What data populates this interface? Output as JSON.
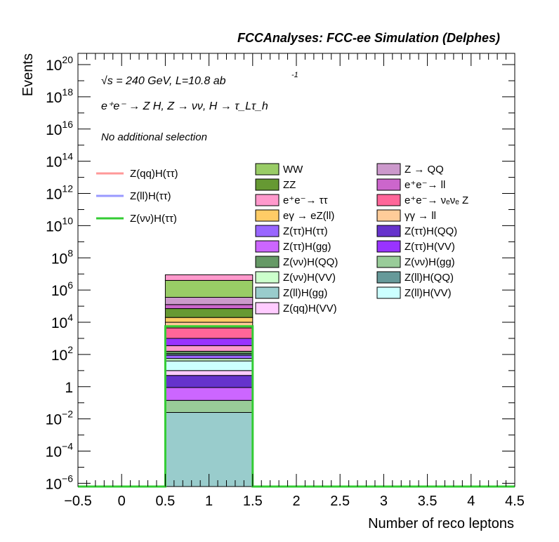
{
  "chart_data": {
    "type": "bar",
    "title": "FCCAnalyses: FCC-ee Simulation (Delphes)",
    "xlabel": "Number of reco leptons",
    "ylabel": "Events",
    "xlim": [
      -0.5,
      4.5
    ],
    "ylim_log10": [
      -6.2,
      20.7
    ],
    "log_y": true,
    "x_ticks": [
      "−0.5",
      "0",
      "0.5",
      "1",
      "1.5",
      "2",
      "2.5",
      "3",
      "3.5",
      "4",
      "4.5"
    ],
    "y_ticks": [
      {
        "base": "10",
        "exp": "20"
      },
      {
        "base": "10",
        "exp": "18"
      },
      {
        "base": "10",
        "exp": "16"
      },
      {
        "base": "10",
        "exp": "14"
      },
      {
        "base": "10",
        "exp": "12"
      },
      {
        "base": "10",
        "exp": "10"
      },
      {
        "base": "10",
        "exp": "8"
      },
      {
        "base": "10",
        "exp": "6"
      },
      {
        "base": "10",
        "exp": "4"
      },
      {
        "base": "10",
        "exp": "2"
      },
      {
        "base": "1",
        "exp": ""
      },
      {
        "base": "10",
        "exp": "−2"
      },
      {
        "base": "10",
        "exp": "−4"
      },
      {
        "base": "10",
        "exp": "−6"
      }
    ],
    "annotations": {
      "energy": "√s = 240 GeV, L=10.8 ab",
      "energy_exp": "-1",
      "process": "e⁺e⁻ → Z H, Z → νν, H → τ_Lτ_h",
      "selection": "No additional selection"
    },
    "bin": [
      0.5,
      1.5
    ],
    "stack": [
      {
        "name": "Z(ll)H(gg)",
        "color": "#99cccc",
        "log10_top": -1.6
      },
      {
        "name": "Z(νν)H(gg)",
        "color": "#99cc99",
        "log10_top": -0.85
      },
      {
        "name": "Z(ττ)H(gg)",
        "color": "#cc66ff",
        "log10_top": -0.05
      },
      {
        "name": "Z(ττ)H(QQ)",
        "color": "#6633cc",
        "log10_top": 0.7
      },
      {
        "name": "Z(qq)H(VV)",
        "color": "#ffccff",
        "log10_top": 1.0
      },
      {
        "name": "Z(ll)H(VV)",
        "color": "#ccffff",
        "log10_top": 1.6
      },
      {
        "name": "Z(νν)H(VV)",
        "color": "#ccffcc",
        "log10_top": 1.75
      },
      {
        "name": "Z(ττ)H(ττ)",
        "color": "#9966ff",
        "log10_top": 1.95
      },
      {
        "name": "Z(ll)H(QQ)",
        "color": "#669999",
        "log10_top": 2.05
      },
      {
        "name": "Z(νν)H(QQ)",
        "color": "#669966",
        "log10_top": 2.2
      },
      {
        "name": "e⁺e⁻→ ττ",
        "color": "#ff99cc",
        "log10_top": 2.55
      },
      {
        "name": "Z(ττ)H(VV)",
        "color": "#9933ff",
        "log10_top": 3.0
      },
      {
        "name": "e⁺e⁻→ νₑνₑ Z",
        "color": "#ff6699",
        "log10_top": 3.65
      },
      {
        "name": "γγ → ll",
        "color": "#ffcc99",
        "log10_top": 4.0
      },
      {
        "name": "eγ → eZ(ll)",
        "color": "#ffcc66",
        "log10_top": 4.3
      },
      {
        "name": "ZZ",
        "color": "#669933",
        "log10_top": 4.85
      },
      {
        "name": "e⁺e⁻→ ll",
        "color": "#cc66cc",
        "log10_top": 5.1
      },
      {
        "name": "Z → QQ",
        "color": "#cc99cc",
        "log10_top": 5.55
      },
      {
        "name": "WW",
        "color": "#99cc66",
        "log10_top": 6.6
      },
      {
        "name": "e⁺e⁻→ ττ (top)",
        "color": "#ff99cc",
        "log10_top": 6.95
      }
    ],
    "signals": [
      {
        "name": "Z(qq)H(ττ)",
        "color": "#ff9999",
        "log10_value": null
      },
      {
        "name": "Z(ll)H(ττ)",
        "color": "#9999ff",
        "log10_value": null
      },
      {
        "name": "Z(νν)H(ττ)",
        "color": "#33cc33",
        "log10_value": 3.75
      }
    ],
    "legend_bkg_col1": [
      {
        "name": "WW",
        "color": "#99cc66"
      },
      {
        "name": "ZZ",
        "color": "#669933"
      },
      {
        "name": "e⁺e⁻→ ττ",
        "color": "#ff99cc"
      },
      {
        "name": "eγ → eZ(ll)",
        "color": "#ffcc66"
      },
      {
        "name": "Z(ττ)H(ττ)",
        "color": "#9966ff"
      },
      {
        "name": "Z(ττ)H(gg)",
        "color": "#cc66ff"
      },
      {
        "name": "Z(νν)H(QQ)",
        "color": "#669966"
      },
      {
        "name": "Z(νν)H(VV)",
        "color": "#ccffcc"
      },
      {
        "name": "Z(ll)H(gg)",
        "color": "#99cccc"
      },
      {
        "name": "Z(qq)H(VV)",
        "color": "#ffccff"
      }
    ],
    "legend_bkg_col2": [
      {
        "name": "Z → QQ",
        "color": "#cc99cc"
      },
      {
        "name": "e⁺e⁻→ ll",
        "color": "#cc66cc"
      },
      {
        "name": "e⁺e⁻→ νₑνₑ Z",
        "color": "#ff6699"
      },
      {
        "name": "γγ → ll",
        "color": "#ffcc99"
      },
      {
        "name": "Z(ττ)H(QQ)",
        "color": "#6633cc"
      },
      {
        "name": "Z(ττ)H(VV)",
        "color": "#9933ff"
      },
      {
        "name": "Z(νν)H(gg)",
        "color": "#99cc99"
      },
      {
        "name": "Z(ll)H(QQ)",
        "color": "#669999"
      },
      {
        "name": "Z(ll)H(VV)",
        "color": "#ccffff"
      }
    ],
    "legend_signals": [
      {
        "name": "Z(qq)H(ττ)",
        "color": "#ff9999"
      },
      {
        "name": "Z(ll)H(ττ)",
        "color": "#9999ff"
      },
      {
        "name": "Z(νν)H(ττ)",
        "color": "#33cc33"
      }
    ]
  }
}
